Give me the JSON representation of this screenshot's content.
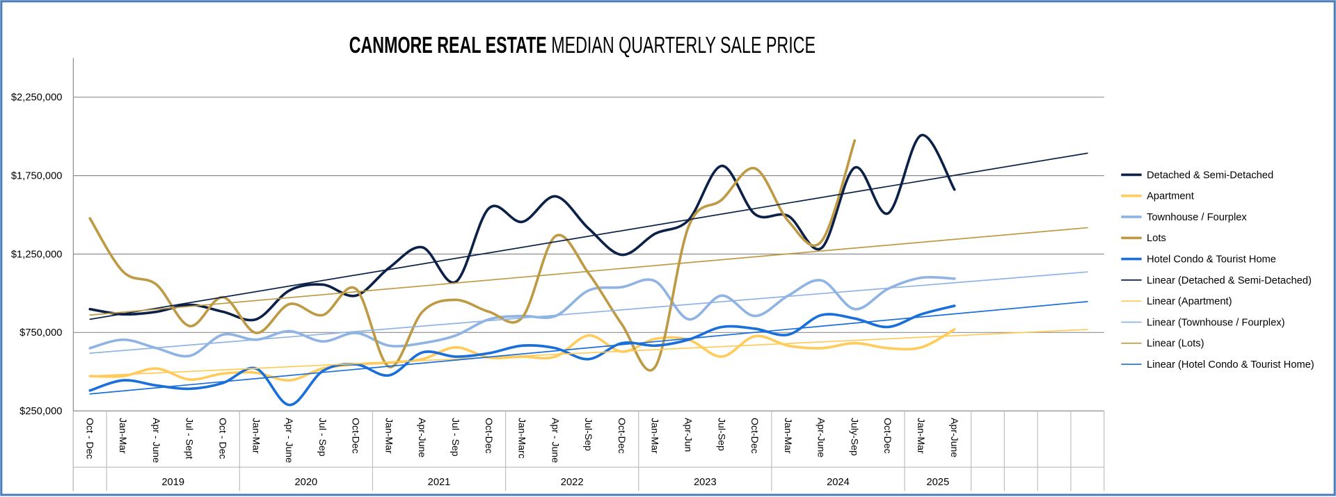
{
  "chart_data": {
    "type": "line",
    "title": {
      "bold": "CANMORE REAL ESTATE",
      "rest": "MEDIAN QUARTERLY SALE PRICE"
    },
    "categories": [
      "Oct - Dec",
      "Jan-Mar",
      "Apr - June",
      "Jul - Sept",
      "Oct - Dec",
      "Jan-Mar",
      "Apr - June",
      "Jul - Sep",
      "Oct-Dec",
      "Jan-Mar",
      "Apr-June",
      "Jul - Sep",
      "Oct-Dec",
      "Jan-Marc",
      "Apr - June",
      "Jul-Sep",
      "Oct-Dec",
      "Jan-Mar",
      "Apr-Jun",
      "Jul-Sep",
      "Oct-Dec",
      "Jan-Mar",
      "Apr-June",
      "July-Sep",
      "Oct-Dec",
      "Jan-Mar",
      "Apr-June",
      null,
      null,
      null,
      null
    ],
    "category_groups": [
      null,
      "2019",
      "2019",
      "2019",
      "2019",
      "2020",
      "2020",
      "2020",
      "2020",
      "2021",
      "2021",
      "2021",
      "2021",
      "2022",
      "2022",
      "2022",
      "2022",
      "2023",
      "2023",
      "2023",
      "2023",
      "2024",
      "2024",
      "2024",
      "2024",
      "2025",
      "2025",
      null,
      null,
      null,
      null
    ],
    "ylim": [
      250000,
      2500000
    ],
    "yticks": [
      {
        "value": 250000,
        "label": "$250,000"
      },
      {
        "value": 750000,
        "label": "$750,000"
      },
      {
        "value": 1250000,
        "label": "$1,250,000"
      },
      {
        "value": 1750000,
        "label": "$1,750,000"
      },
      {
        "value": 2250000,
        "label": "$2,250,000"
      }
    ],
    "grid": true,
    "legend": "right",
    "series": [
      {
        "name": "Detached & Semi-Detached",
        "color": "#0c2147",
        "width": 3,
        "smooth": true,
        "values": [
          899000,
          866000,
          882000,
          926000,
          882000,
          834000,
          1018000,
          1055000,
          985000,
          1163000,
          1293000,
          1072000,
          1542000,
          1455000,
          1618000,
          1412000,
          1245000,
          1380000,
          1466000,
          1812000,
          1504000,
          1493000,
          1288000,
          1801000,
          1509000,
          2007000,
          1661000,
          null,
          null,
          null,
          null
        ]
      },
      {
        "name": "Apartment",
        "color": "#ffcc5c",
        "width": 3,
        "smooth": true,
        "values": [
          472000,
          472000,
          520000,
          450000,
          488000,
          493000,
          445000,
          520000,
          547000,
          558000,
          580000,
          655000,
          590000,
          596000,
          596000,
          731000,
          628000,
          709000,
          704000,
          596000,
          726000,
          666000,
          650000,
          682000,
          650000,
          655000,
          769000,
          null,
          null,
          null,
          null
        ]
      },
      {
        "name": "Townhouse / Fourplex",
        "color": "#8fb4e3",
        "width": 3,
        "smooth": true,
        "values": [
          650000,
          704000,
          650000,
          601000,
          736000,
          704000,
          758000,
          693000,
          747000,
          666000,
          682000,
          731000,
          834000,
          855000,
          855000,
          1018000,
          1039000,
          1077000,
          834000,
          985000,
          855000,
          985000,
          1082000,
          899000,
          1028000,
          1099000,
          1093000,
          null,
          null,
          null,
          null
        ]
      },
      {
        "name": "Lots",
        "color": "#bf9a45",
        "width": 3,
        "smooth": true,
        "values": [
          1477000,
          1137000,
          1055000,
          791000,
          975000,
          747000,
          931000,
          861000,
          1028000,
          531000,
          882000,
          958000,
          882000,
          845000,
          1364000,
          1126000,
          801000,
          531000,
          1423000,
          1596000,
          1796000,
          1461000,
          1331000,
          1974000,
          null,
          null,
          null,
          null,
          null,
          null,
          null
        ]
      },
      {
        "name": "Hotel Condo & Tourist Home",
        "color": "#1a6fdb",
        "width": 3,
        "smooth": true,
        "values": [
          380000,
          445000,
          412000,
          391000,
          428000,
          520000,
          288000,
          504000,
          547000,
          477000,
          623000,
          596000,
          618000,
          666000,
          650000,
          580000,
          682000,
          666000,
          704000,
          785000,
          774000,
          736000,
          861000,
          839000,
          785000,
          866000,
          920000,
          null,
          null,
          null,
          null
        ]
      },
      {
        "name": "Linear (Detached & Semi-Detached)",
        "color": "#0c2147",
        "width": 1.4,
        "x": [
          0,
          30
        ],
        "values": [
          834000,
          1893000
        ]
      },
      {
        "name": "Linear (Apartment)",
        "color": "#ffcc5c",
        "width": 1.4,
        "x": [
          0,
          30
        ],
        "values": [
          472000,
          769000
        ]
      },
      {
        "name": "Linear (Townhouse / Fourplex)",
        "color": "#8fb4e3",
        "width": 1.4,
        "x": [
          0,
          30
        ],
        "values": [
          618000,
          1136000
        ]
      },
      {
        "name": "Linear (Lots)",
        "color": "#bf9a45",
        "width": 1.4,
        "x": [
          0,
          30
        ],
        "values": [
          861000,
          1418000
        ]
      },
      {
        "name": "Linear (Hotel Condo & Tourist Home)",
        "color": "#1a6fdb",
        "width": 1.4,
        "x": [
          0,
          30
        ],
        "values": [
          358000,
          947000
        ]
      }
    ]
  }
}
